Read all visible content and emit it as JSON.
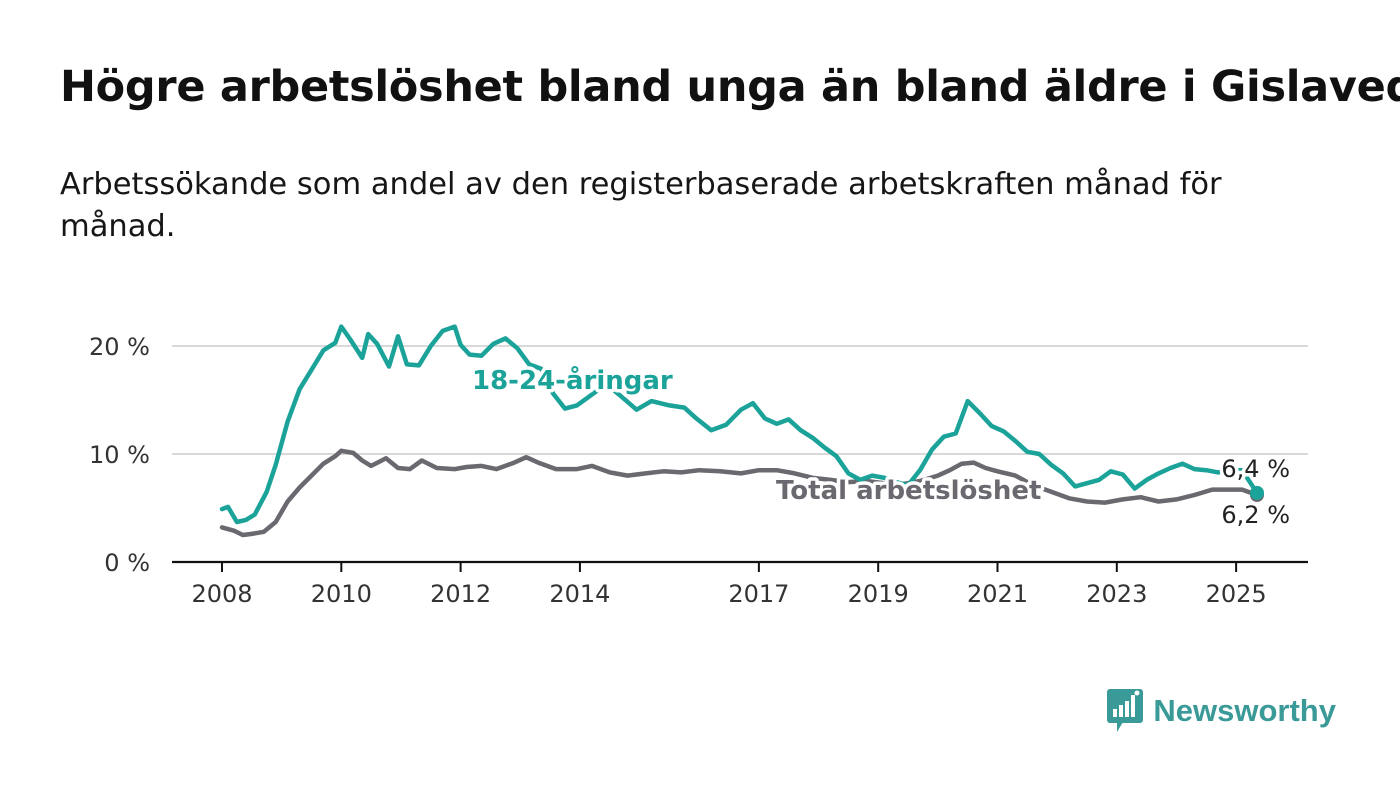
{
  "title": "Högre arbetslöshet bland unga än bland äldre i Gislaved",
  "subtitle": "Arbetssökande som andel av den registerbaserade arbetskraften månad för månad.",
  "brand": {
    "name": "Newsworthy",
    "icon": "bar-chart-speech-bubble-icon",
    "color": "#3a9a98"
  },
  "chart_data": {
    "type": "line",
    "grid": true,
    "ylim": [
      0,
      20
    ],
    "xlim": [
      2008,
      2026
    ],
    "y_ticks": [
      {
        "value": 0,
        "label": "0 %"
      },
      {
        "value": 10,
        "label": "10 %"
      },
      {
        "value": 20,
        "label": "20 %"
      }
    ],
    "x_ticks": [
      {
        "value": 2008,
        "label": "2008"
      },
      {
        "value": 2010,
        "label": "2010"
      },
      {
        "value": 2012,
        "label": "2012"
      },
      {
        "value": 2014,
        "label": "2014"
      },
      {
        "value": 2017,
        "label": "2017"
      },
      {
        "value": 2019,
        "label": "2019"
      },
      {
        "value": 2021,
        "label": "2021"
      },
      {
        "value": 2023,
        "label": "2023"
      },
      {
        "value": 2025,
        "label": "2025"
      }
    ],
    "series": [
      {
        "name": "18-24-åringar",
        "color": "#1ba39a",
        "end_label": "6,4 %",
        "x": [
          2008.0,
          2008.1,
          2008.25,
          2008.4,
          2008.55,
          2008.75,
          2008.9,
          2009.1,
          2009.3,
          2009.5,
          2009.7,
          2009.9,
          2010.0,
          2010.15,
          2010.35,
          2010.45,
          2010.6,
          2010.8,
          2010.95,
          2011.1,
          2011.3,
          2011.5,
          2011.7,
          2011.9,
          2012.0,
          2012.15,
          2012.35,
          2012.55,
          2012.75,
          2012.95,
          2013.15,
          2013.35,
          2013.55,
          2013.75,
          2013.95,
          2014.1,
          2014.3,
          2014.5,
          2014.7,
          2014.95,
          2015.2,
          2015.5,
          2015.75,
          2015.95,
          2016.2,
          2016.45,
          2016.7,
          2016.9,
          2017.1,
          2017.3,
          2017.5,
          2017.7,
          2017.9,
          2018.1,
          2018.3,
          2018.5,
          2018.7,
          2018.9,
          2019.1,
          2019.3,
          2019.5,
          2019.7,
          2019.9,
          2020.1,
          2020.3,
          2020.5,
          2020.7,
          2020.9,
          2021.1,
          2021.3,
          2021.5,
          2021.7,
          2021.9,
          2022.1,
          2022.3,
          2022.5,
          2022.7,
          2022.9,
          2023.1,
          2023.3,
          2023.5,
          2023.7,
          2023.9,
          2024.1,
          2024.3,
          2024.5,
          2024.7,
          2024.9,
          2025.1,
          2025.35
        ],
        "y": [
          4.9,
          5.1,
          3.7,
          3.9,
          4.4,
          6.5,
          9.0,
          13.0,
          16.0,
          17.8,
          19.6,
          20.3,
          21.8,
          20.6,
          18.9,
          21.1,
          20.2,
          18.1,
          20.9,
          18.3,
          18.2,
          20.0,
          21.4,
          21.8,
          20.1,
          19.2,
          19.1,
          20.2,
          20.7,
          19.8,
          18.3,
          17.9,
          15.6,
          14.2,
          14.5,
          15.1,
          15.9,
          16.2,
          15.3,
          14.1,
          14.9,
          14.5,
          14.3,
          13.3,
          12.2,
          12.7,
          14.1,
          14.7,
          13.3,
          12.8,
          13.2,
          12.2,
          11.5,
          10.6,
          9.8,
          8.2,
          7.6,
          8.0,
          7.8,
          7.4,
          7.1,
          8.5,
          10.4,
          11.6,
          11.9,
          14.9,
          13.8,
          12.6,
          12.1,
          11.2,
          10.2,
          10.0,
          9.0,
          8.2,
          7.0,
          7.3,
          7.6,
          8.4,
          8.1,
          6.8,
          7.6,
          8.2,
          8.7,
          9.1,
          8.6,
          8.5,
          8.3,
          8.5,
          8.5,
          6.4
        ]
      },
      {
        "name": "Total arbetslöshet",
        "color": "#6b6870",
        "end_label": "6,2 %",
        "x": [
          2008.0,
          2008.2,
          2008.35,
          2008.5,
          2008.7,
          2008.9,
          2009.1,
          2009.3,
          2009.5,
          2009.7,
          2009.9,
          2010.0,
          2010.2,
          2010.35,
          2010.5,
          2010.75,
          2010.95,
          2011.15,
          2011.35,
          2011.6,
          2011.9,
          2012.1,
          2012.35,
          2012.6,
          2012.9,
          2013.1,
          2013.3,
          2013.6,
          2013.95,
          2014.2,
          2014.5,
          2014.8,
          2015.1,
          2015.4,
          2015.7,
          2016.0,
          2016.35,
          2016.7,
          2017.0,
          2017.3,
          2017.6,
          2017.9,
          2018.2,
          2018.5,
          2018.8,
          2019.1,
          2019.4,
          2019.7,
          2020.0,
          2020.2,
          2020.4,
          2020.6,
          2020.8,
          2021.0,
          2021.3,
          2021.6,
          2021.9,
          2022.2,
          2022.5,
          2022.8,
          2023.1,
          2023.4,
          2023.7,
          2024.0,
          2024.3,
          2024.6,
          2024.9,
          2025.1,
          2025.35
        ],
        "y": [
          3.2,
          2.9,
          2.5,
          2.6,
          2.8,
          3.7,
          5.6,
          6.9,
          8.0,
          9.1,
          9.8,
          10.3,
          10.1,
          9.4,
          8.9,
          9.6,
          8.7,
          8.6,
          9.4,
          8.7,
          8.6,
          8.8,
          8.9,
          8.6,
          9.2,
          9.7,
          9.2,
          8.6,
          8.6,
          8.9,
          8.3,
          8.0,
          8.2,
          8.4,
          8.3,
          8.5,
          8.4,
          8.2,
          8.5,
          8.5,
          8.2,
          7.8,
          7.6,
          7.4,
          7.5,
          7.3,
          7.2,
          7.5,
          8.0,
          8.5,
          9.1,
          9.2,
          8.7,
          8.4,
          8.0,
          7.1,
          6.5,
          5.9,
          5.6,
          5.5,
          5.8,
          6.0,
          5.6,
          5.8,
          6.2,
          6.7,
          6.7,
          6.7,
          6.2
        ]
      }
    ]
  }
}
